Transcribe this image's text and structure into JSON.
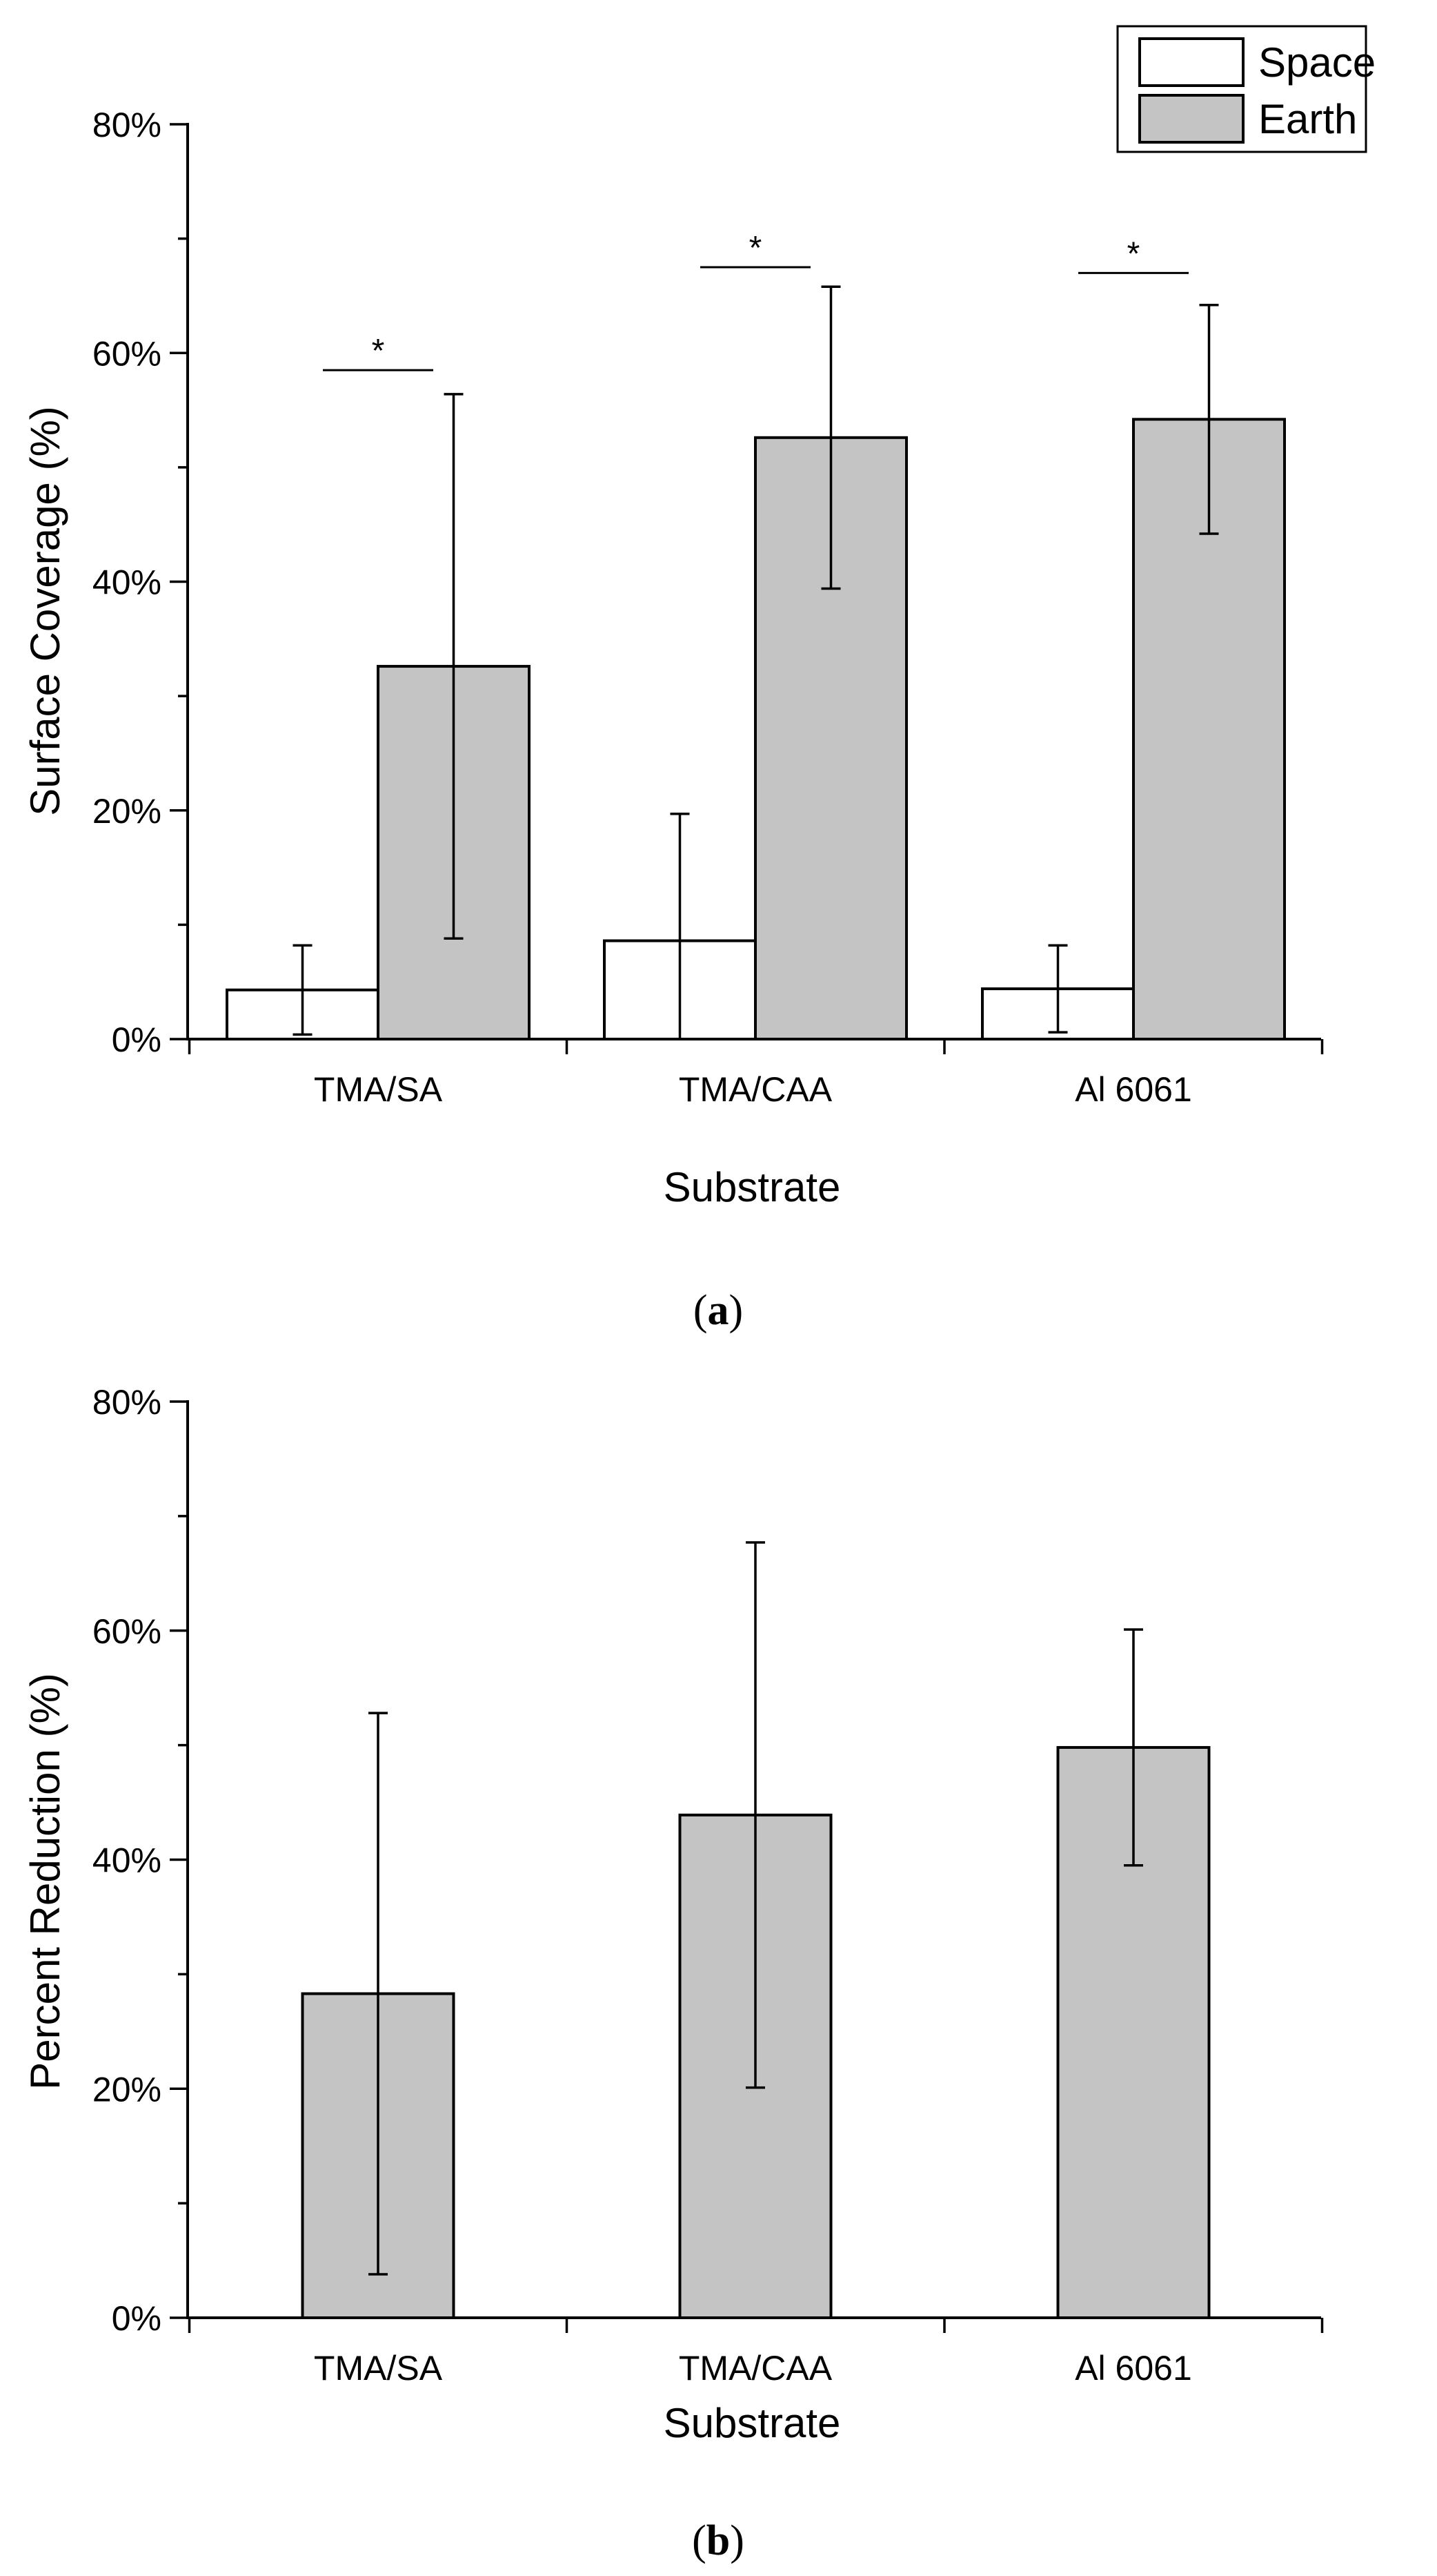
{
  "chart_data": [
    {
      "id": "a",
      "type": "bar",
      "title": "",
      "caption_label": "a",
      "xlabel": "Substrate",
      "ylabel": "Surface Coverage (%)",
      "ylim": [
        0,
        80
      ],
      "yticks": [
        0,
        20,
        40,
        60,
        80
      ],
      "ytick_labels": [
        "0%",
        "20%",
        "40%",
        "60%",
        "80%"
      ],
      "categories": [
        "TMA/SA",
        "TMA/CAA",
        "Al 6061"
      ],
      "series": [
        {
          "name": "Space",
          "color": "#ffffff",
          "values": [
            4.3,
            8.6,
            4.4
          ],
          "error": [
            3.9,
            11.1,
            3.8
          ]
        },
        {
          "name": "Earth",
          "color": "#c4c4c4",
          "values": [
            32.6,
            52.6,
            54.2
          ],
          "error": [
            23.8,
            13.2,
            10.0
          ]
        }
      ],
      "significance": [
        {
          "category": "TMA/SA",
          "label": "*",
          "y": 58.5
        },
        {
          "category": "TMA/CAA",
          "label": "*",
          "y": 67.5
        },
        {
          "category": "Al 6061",
          "label": "*",
          "y": 67.0
        }
      ],
      "legend": {
        "position": "top-right",
        "entries": [
          "Space",
          "Earth"
        ]
      },
      "grid": false
    },
    {
      "id": "b",
      "type": "bar",
      "title": "",
      "caption_label": "b",
      "xlabel": "Substrate",
      "ylabel": "Percent Reduction (%)",
      "ylim": [
        0,
        80
      ],
      "yticks": [
        0,
        20,
        40,
        60,
        80
      ],
      "ytick_labels": [
        "0%",
        "20%",
        "40%",
        "60%",
        "80%"
      ],
      "categories": [
        "TMA/SA",
        "TMA/CAA",
        "Al 6061"
      ],
      "series": [
        {
          "name": "Percent Reduction",
          "color": "#c4c4c4",
          "values": [
            28.3,
            43.9,
            49.8
          ],
          "error": [
            24.5,
            23.8,
            10.3
          ]
        }
      ],
      "grid": false
    }
  ]
}
